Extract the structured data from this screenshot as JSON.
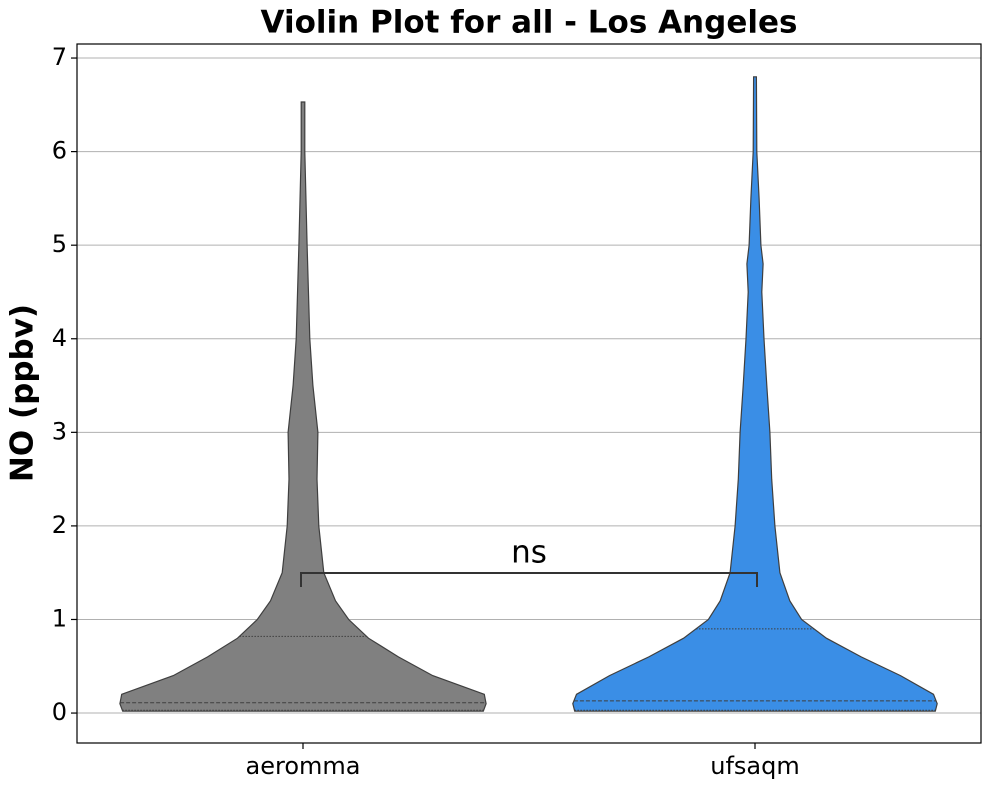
{
  "chart_data": {
    "type": "violin",
    "title": "Violin Plot for all - Los Angeles",
    "ylabel": "NO (ppbv)",
    "categories": [
      "aeromma",
      "ufsaqm"
    ],
    "series": [
      {
        "name": "aeromma",
        "color": "#808080",
        "y": [
          0.02,
          0.1,
          0.2,
          0.4,
          0.6,
          0.8,
          1.0,
          1.2,
          1.5,
          2.0,
          2.5,
          3.0,
          3.5,
          4.0,
          5.0,
          6.0,
          6.53
        ],
        "widths": [
          0.399,
          0.405,
          0.401,
          0.287,
          0.211,
          0.145,
          0.101,
          0.072,
          0.046,
          0.035,
          0.031,
          0.033,
          0.022,
          0.015,
          0.009,
          0.004,
          0.004
        ],
        "quartiles": [
          0.03,
          0.11,
          0.82
        ]
      },
      {
        "name": "ufsaqm",
        "color": "#3a8ee6",
        "y": [
          0.02,
          0.1,
          0.2,
          0.4,
          0.6,
          0.8,
          1.0,
          1.2,
          1.5,
          2.0,
          2.5,
          3.0,
          3.5,
          4.0,
          4.5,
          4.8,
          5.0,
          5.5,
          6.0,
          6.8
        ],
        "widths": [
          0.399,
          0.403,
          0.395,
          0.322,
          0.235,
          0.158,
          0.103,
          0.077,
          0.055,
          0.044,
          0.037,
          0.033,
          0.026,
          0.02,
          0.015,
          0.018,
          0.013,
          0.009,
          0.004,
          0.003
        ],
        "quartiles": [
          0.03,
          0.13,
          0.9
        ]
      }
    ],
    "annotation": "ns",
    "ylim": [
      -0.32,
      7.15
    ],
    "yticks": [
      0,
      1,
      2,
      3,
      4,
      5,
      6,
      7
    ],
    "grid": true
  }
}
